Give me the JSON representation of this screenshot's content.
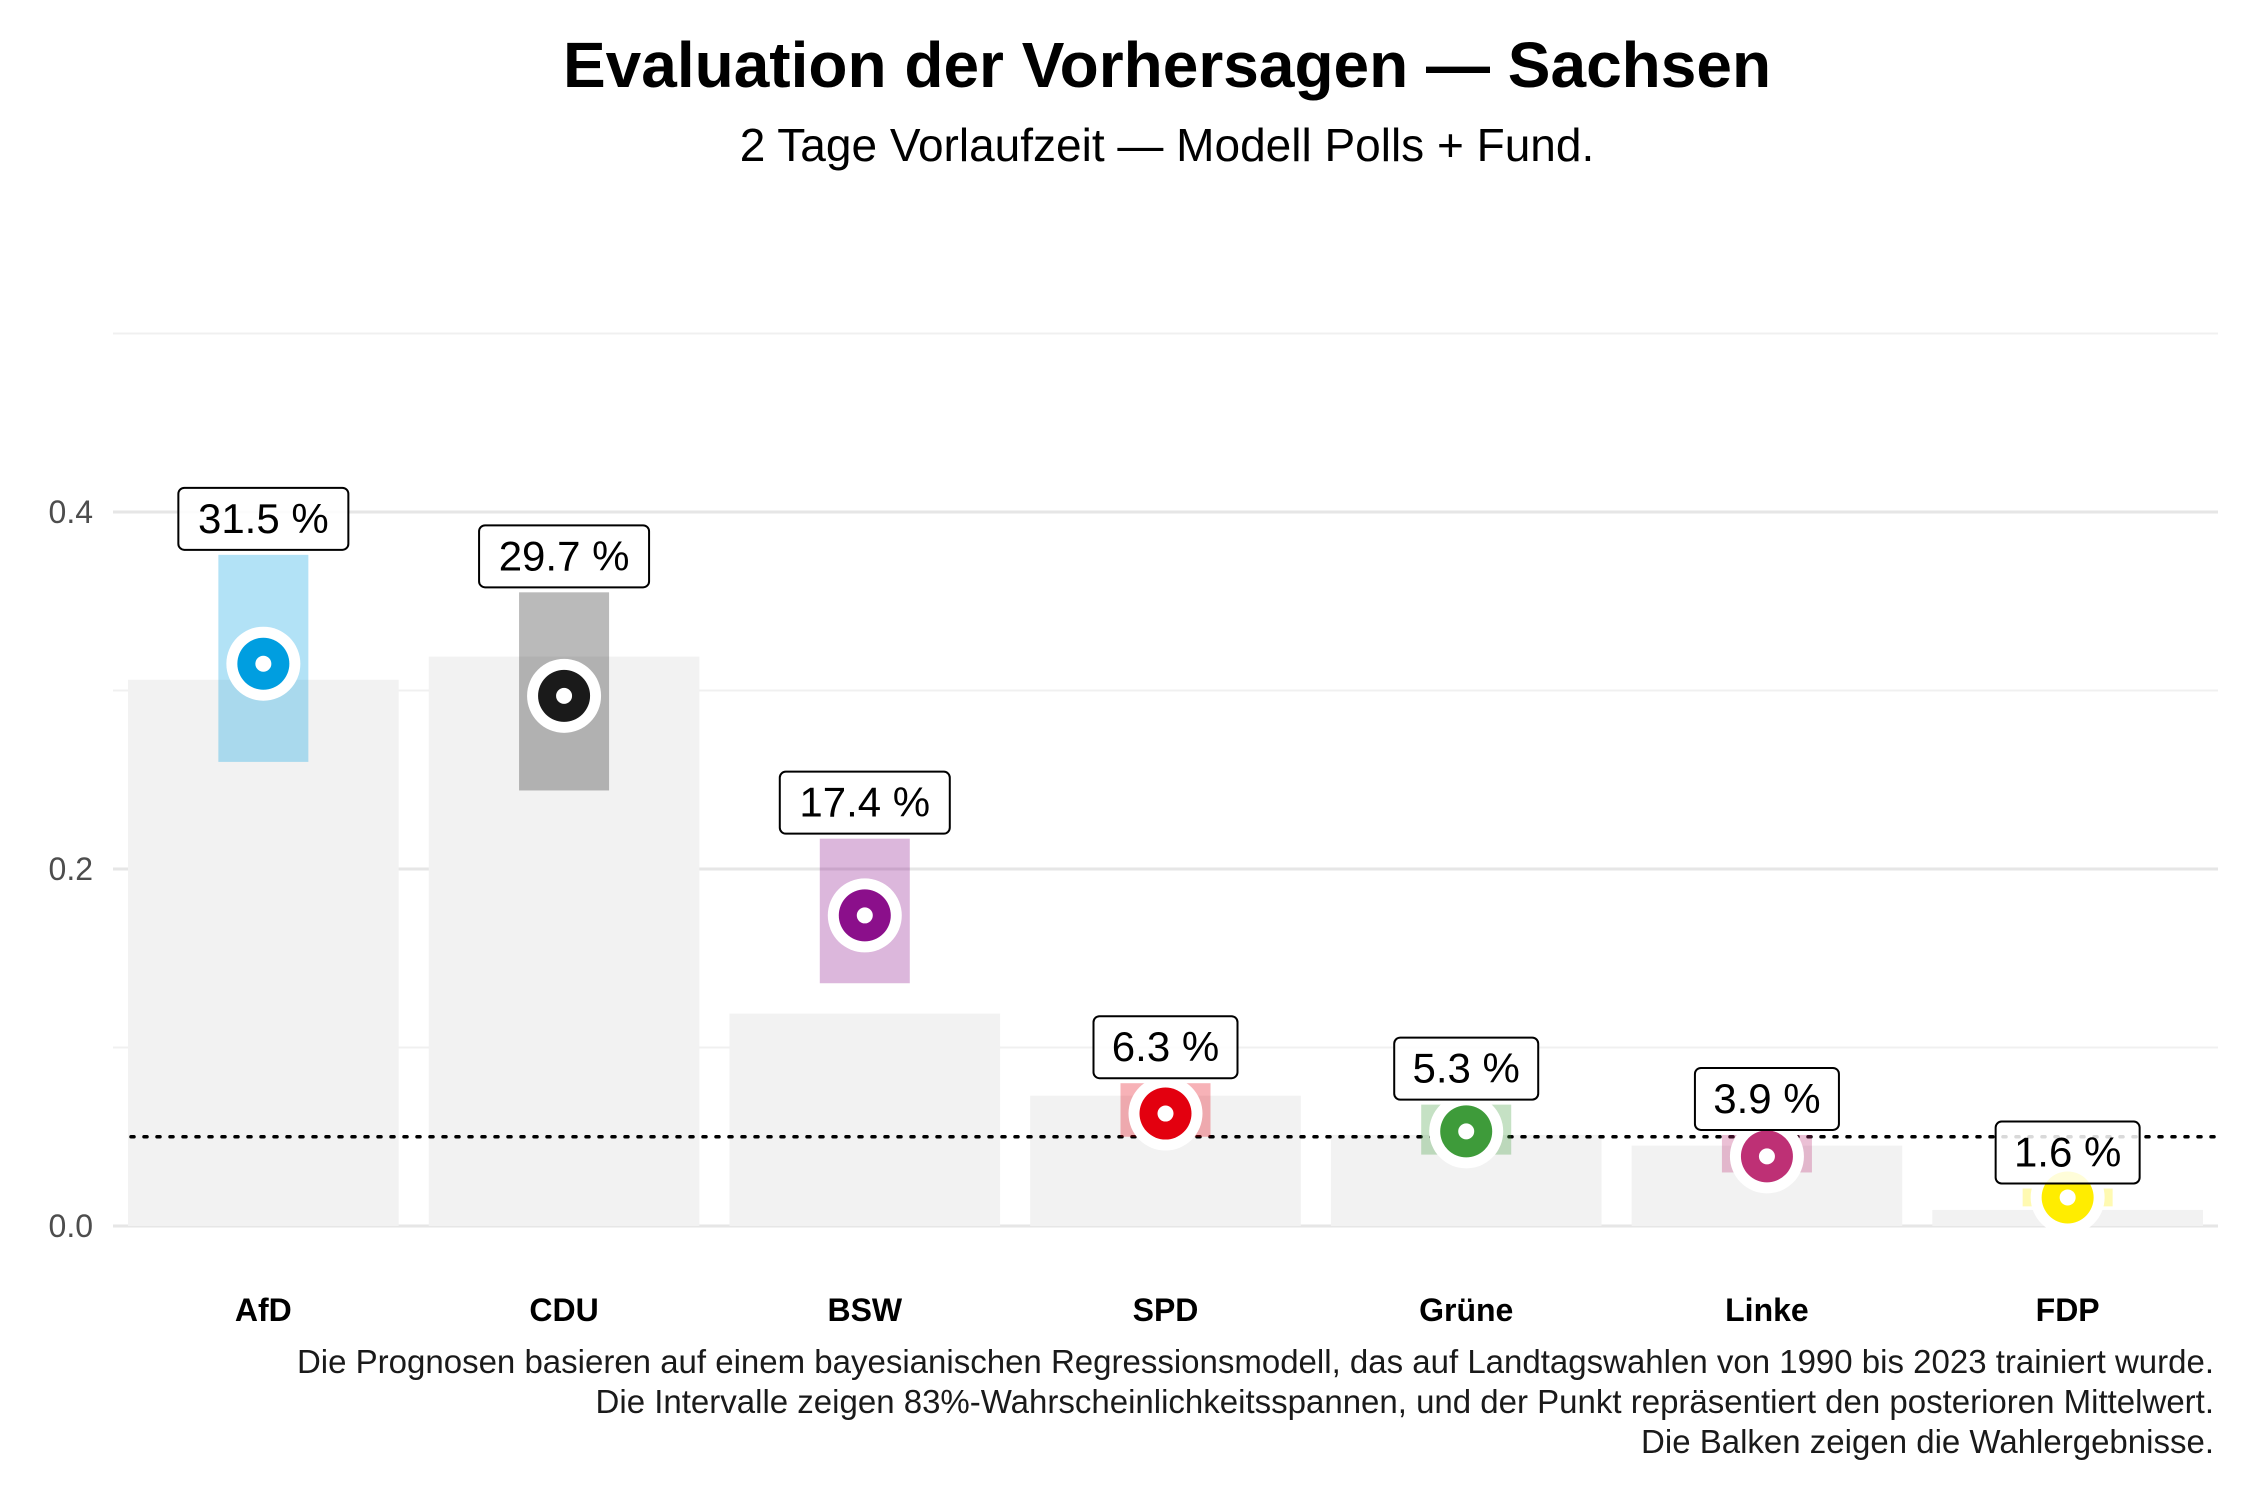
{
  "title": "Evaluation der Vorhersagen — Sachsen",
  "subtitle": "2 Tage Vorlaufzeit — Modell Polls + Fund.",
  "caption": [
    "Die Prognosen basieren auf einem bayesianischen Regressionsmodell, das auf Landtagswahlen von 1990 bis 2023 trainiert wurde.",
    "Die Intervalle zeigen 83%-Wahrscheinlichkeitsspannen, und der Punkt repräsentiert den posterioren Mittelwert.",
    "Die Balken zeigen die Wahlergebnisse."
  ],
  "chart_data": {
    "type": "bar",
    "categories": [
      "AfD",
      "CDU",
      "BSW",
      "SPD",
      "Grüne",
      "Linke",
      "FDP"
    ],
    "y_ticks": [
      "0.0",
      "0.2",
      "0.4"
    ],
    "ylim": [
      -0.02,
      0.5
    ],
    "threshold": 0.05,
    "grid": true,
    "colors": [
      "#009ee0",
      "#1a1a1a",
      "#8b0f8b",
      "#e3000f",
      "#3e9b3a",
      "#be3075",
      "#ffed00"
    ],
    "results": [
      0.306,
      0.319,
      0.119,
      0.073,
      0.051,
      0.045,
      0.009
    ],
    "forecast_mean": [
      0.315,
      0.297,
      0.174,
      0.063,
      0.053,
      0.039,
      0.016
    ],
    "interval_low": [
      0.26,
      0.244,
      0.136,
      0.05,
      0.04,
      0.03,
      0.011
    ],
    "interval_high": [
      0.376,
      0.355,
      0.217,
      0.08,
      0.068,
      0.051,
      0.021
    ],
    "labels": [
      "31.5 %",
      "29.7 %",
      "17.4 %",
      "6.3 %",
      "5.3 %",
      "3.9 %",
      "1.6 %"
    ]
  }
}
